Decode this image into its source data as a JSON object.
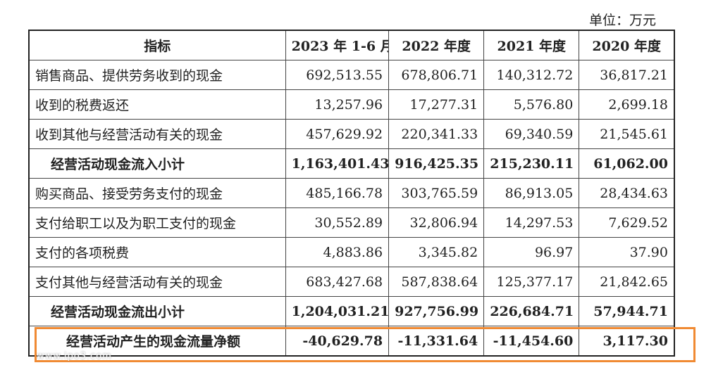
{
  "unit_label": "单位：万元",
  "headers": [
    "指标",
    "2023 年 1-6 月",
    "2022 年度",
    "2021 年度",
    "2020 年度"
  ],
  "rows": [
    {
      "label": "销售商品、提供劳务收到的现金",
      "values": [
        "692,513.55",
        "678,806.71",
        "140,312.72",
        "36,817.21"
      ],
      "style": "normal"
    },
    {
      "label": "收到的税费返还",
      "values": [
        "13,257.96",
        "17,277.31",
        "5,576.80",
        "2,699.18"
      ],
      "style": "normal"
    },
    {
      "label": "收到其他与经营活动有关的现金",
      "values": [
        "457,629.92",
        "220,341.33",
        "69,340.59",
        "21,545.61"
      ],
      "style": "normal"
    },
    {
      "label": "经营活动现金流入小计",
      "values": [
        "1,163,401.43",
        "916,425.35",
        "215,230.11",
        "61,062.00"
      ],
      "style": "bold"
    },
    {
      "label": "购买商品、接受劳务支付的现金",
      "values": [
        "485,166.78",
        "303,765.59",
        "86,913.05",
        "28,434.63"
      ],
      "style": "normal"
    },
    {
      "label": "支付给职工以及为职工支付的现金",
      "values": [
        "30,552.89",
        "32,806.94",
        "14,297.53",
        "7,629.52"
      ],
      "style": "normal"
    },
    {
      "label": "支付的各项税费",
      "values": [
        "4,883.86",
        "3,345.82",
        "96.97",
        "37.90"
      ],
      "style": "normal"
    },
    {
      "label": "支付其他与经营活动有关的现金",
      "values": [
        "683,427.68",
        "587,838.64",
        "125,377.17",
        "21,842.65"
      ],
      "style": "normal"
    },
    {
      "label": "经营活动现金流出小计",
      "values": [
        "1,204,031.21",
        "927,756.99",
        "226,684.71",
        "57,944.71"
      ],
      "style": "bold"
    },
    {
      "label": "经营活动产生的现金流量净额",
      "values": [
        "-40,629.78",
        "-11,331.64",
        "-11,454.60",
        "3,117.30"
      ],
      "style": "net"
    }
  ],
  "watermark": "www.ipo3.com",
  "highlight_color": "#f08a33"
}
